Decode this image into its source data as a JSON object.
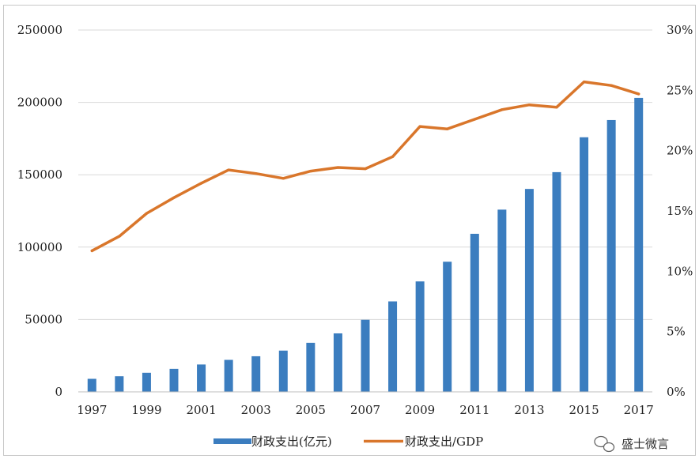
{
  "chart_data": {
    "type": "bar",
    "categories": [
      "1997",
      "1998",
      "1999",
      "2000",
      "2001",
      "2002",
      "2003",
      "2004",
      "2005",
      "2006",
      "2007",
      "2008",
      "2009",
      "2010",
      "2011",
      "2012",
      "2013",
      "2014",
      "2015",
      "2016",
      "2017"
    ],
    "x_tick_labels": [
      "1997",
      "1999",
      "2001",
      "2003",
      "2005",
      "2007",
      "2009",
      "2011",
      "2013",
      "2015",
      "2017"
    ],
    "series": [
      {
        "name": "财政支出(亿元)",
        "type": "bar",
        "axis": "left",
        "color": "#3b7dbf",
        "values": [
          9000,
          10800,
          13200,
          15900,
          18900,
          22100,
          24600,
          28500,
          33900,
          40400,
          49800,
          62500,
          76300,
          89900,
          109200,
          125900,
          140200,
          151800,
          175900,
          187800,
          203100
        ]
      },
      {
        "name": "财政支出/GDP",
        "type": "line",
        "axis": "right",
        "color": "#d9762b",
        "values": [
          11.7,
          12.9,
          14.8,
          16.1,
          17.3,
          18.4,
          18.1,
          17.7,
          18.3,
          18.6,
          18.5,
          19.5,
          22.0,
          21.8,
          22.6,
          23.4,
          23.8,
          23.6,
          25.7,
          25.4,
          24.7
        ]
      }
    ],
    "y_left": {
      "ticks": [
        "250000",
        "200000",
        "150000",
        "100000",
        "50000",
        "0"
      ],
      "ylim": [
        0,
        250000
      ]
    },
    "y_right": {
      "ticks": [
        "30%",
        "25%",
        "20%",
        "15%",
        "10%",
        "5%",
        "0%"
      ],
      "ylim": [
        0,
        30
      ]
    },
    "grid": true,
    "legend": "bottom"
  },
  "watermark": {
    "icon": "wechat-icon",
    "text": "盛士微言"
  }
}
